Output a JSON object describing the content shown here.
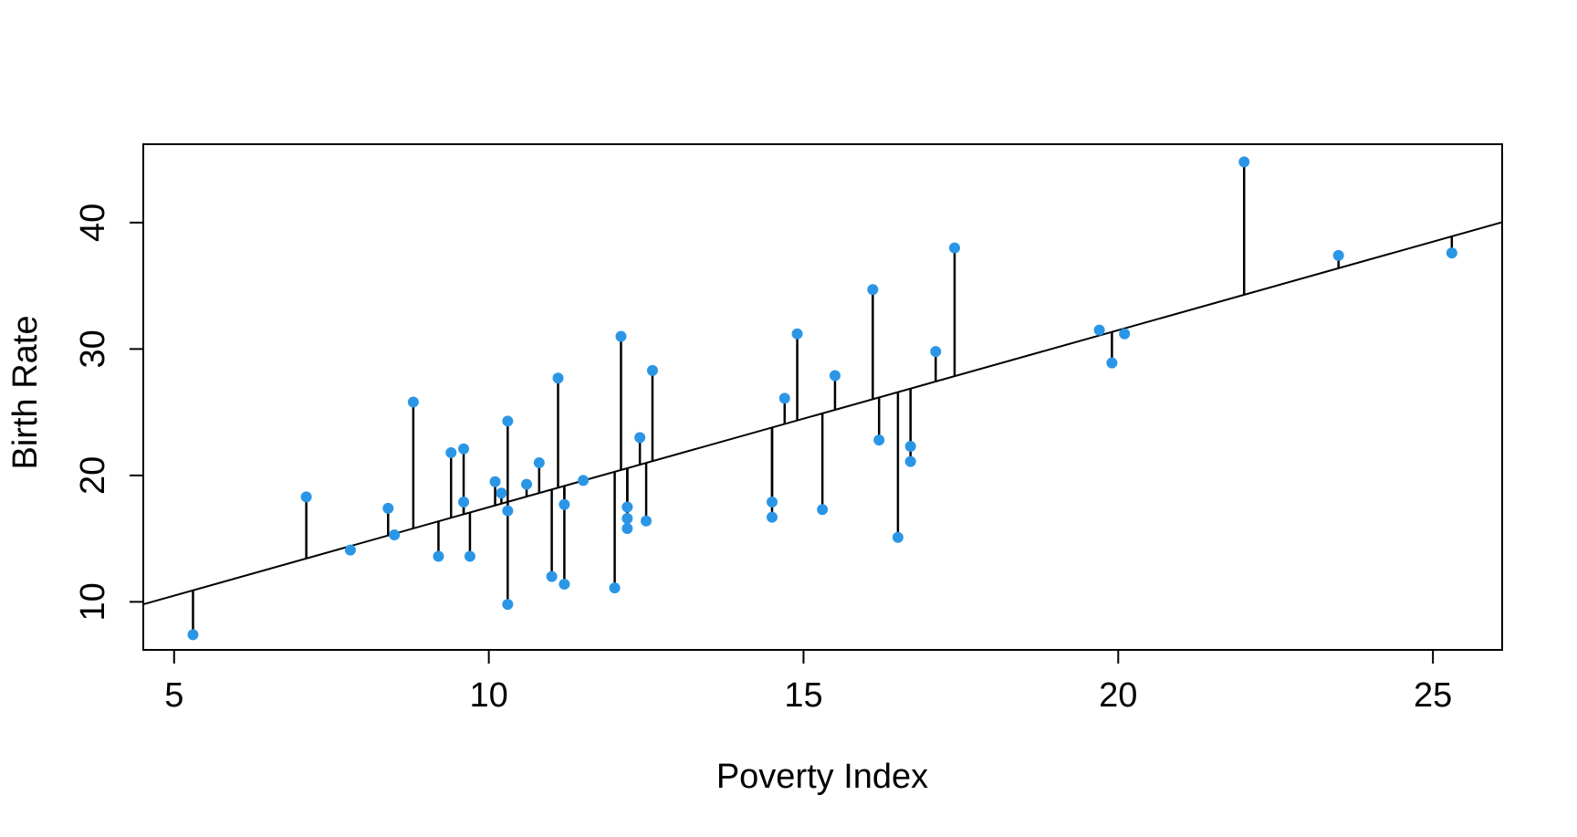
{
  "figure": {
    "background_color": "#ffffff",
    "frame_color": "#000000",
    "title": ""
  },
  "chart_data": {
    "type": "scatter",
    "title": "",
    "xlabel": "Poverty Index",
    "ylabel": "Birth Rate",
    "x_ticks": [
      5,
      10,
      15,
      20,
      25
    ],
    "y_ticks": [
      10,
      20,
      30,
      40
    ],
    "xlim": [
      4.51,
      26.1
    ],
    "ylim": [
      6.2,
      46.2
    ],
    "grid": false,
    "legend_position": "none",
    "point_color": "#2b96e6",
    "segment_color": "#000000",
    "regression_line_color": "#000000",
    "regression_line": {
      "intercept": 3.49,
      "slope": 1.4
    },
    "residual_segments": true,
    "points": [
      {
        "x": 5.3,
        "y": 7.4
      },
      {
        "x": 7.1,
        "y": 18.3
      },
      {
        "x": 7.8,
        "y": 14.1
      },
      {
        "x": 8.4,
        "y": 17.4
      },
      {
        "x": 8.5,
        "y": 15.3
      },
      {
        "x": 8.8,
        "y": 25.8
      },
      {
        "x": 9.2,
        "y": 13.6
      },
      {
        "x": 9.4,
        "y": 21.8
      },
      {
        "x": 9.6,
        "y": 22.1
      },
      {
        "x": 9.6,
        "y": 17.9
      },
      {
        "x": 9.7,
        "y": 13.6
      },
      {
        "x": 10.1,
        "y": 19.5
      },
      {
        "x": 10.2,
        "y": 18.6
      },
      {
        "x": 10.3,
        "y": 24.3
      },
      {
        "x": 10.3,
        "y": 17.2
      },
      {
        "x": 10.3,
        "y": 9.8
      },
      {
        "x": 10.6,
        "y": 19.3
      },
      {
        "x": 10.8,
        "y": 21.0
      },
      {
        "x": 11.0,
        "y": 12.0
      },
      {
        "x": 11.1,
        "y": 27.7
      },
      {
        "x": 11.2,
        "y": 17.7
      },
      {
        "x": 11.2,
        "y": 11.4
      },
      {
        "x": 11.5,
        "y": 19.6
      },
      {
        "x": 12.0,
        "y": 11.1
      },
      {
        "x": 12.1,
        "y": 31.0
      },
      {
        "x": 12.2,
        "y": 17.5
      },
      {
        "x": 12.2,
        "y": 16.6
      },
      {
        "x": 12.2,
        "y": 15.8
      },
      {
        "x": 12.4,
        "y": 23.0
      },
      {
        "x": 12.5,
        "y": 16.4
      },
      {
        "x": 12.6,
        "y": 28.3
      },
      {
        "x": 14.5,
        "y": 17.9
      },
      {
        "x": 14.5,
        "y": 16.7
      },
      {
        "x": 14.7,
        "y": 26.1
      },
      {
        "x": 14.9,
        "y": 31.2
      },
      {
        "x": 15.3,
        "y": 17.3
      },
      {
        "x": 15.5,
        "y": 27.9
      },
      {
        "x": 16.1,
        "y": 34.7
      },
      {
        "x": 16.2,
        "y": 22.8
      },
      {
        "x": 16.5,
        "y": 15.1
      },
      {
        "x": 16.7,
        "y": 22.3
      },
      {
        "x": 16.7,
        "y": 21.1
      },
      {
        "x": 17.1,
        "y": 29.8
      },
      {
        "x": 17.4,
        "y": 38.0
      },
      {
        "x": 19.7,
        "y": 31.5
      },
      {
        "x": 19.9,
        "y": 28.9
      },
      {
        "x": 20.1,
        "y": 31.2
      },
      {
        "x": 22.0,
        "y": 44.8
      },
      {
        "x": 23.5,
        "y": 37.4
      },
      {
        "x": 25.3,
        "y": 37.6
      }
    ]
  }
}
